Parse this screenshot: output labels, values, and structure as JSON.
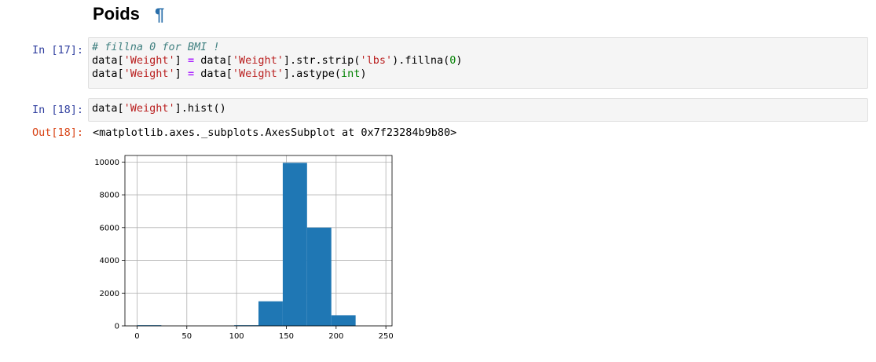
{
  "heading": {
    "title": "Poids",
    "anchor": "¶"
  },
  "cells": [
    {
      "prompt": "In [17]:",
      "lines": [
        [
          {
            "t": "# fillna 0 for BMI !",
            "c": "cm"
          }
        ],
        [
          {
            "t": "data[",
            "c": ""
          },
          {
            "t": "'Weight'",
            "c": "s"
          },
          {
            "t": "] ",
            "c": ""
          },
          {
            "t": "=",
            "c": "op"
          },
          {
            "t": " data[",
            "c": ""
          },
          {
            "t": "'Weight'",
            "c": "s"
          },
          {
            "t": "].str.strip(",
            "c": ""
          },
          {
            "t": "'lbs'",
            "c": "s"
          },
          {
            "t": ").fillna(",
            "c": ""
          },
          {
            "t": "0",
            "c": "n"
          },
          {
            "t": ")",
            "c": ""
          }
        ],
        [
          {
            "t": "data[",
            "c": ""
          },
          {
            "t": "'Weight'",
            "c": "s"
          },
          {
            "t": "] ",
            "c": ""
          },
          {
            "t": "=",
            "c": "op"
          },
          {
            "t": " data[",
            "c": ""
          },
          {
            "t": "'Weight'",
            "c": "s"
          },
          {
            "t": "].astype(",
            "c": ""
          },
          {
            "t": "int",
            "c": "bi"
          },
          {
            "t": ")",
            "c": ""
          }
        ]
      ]
    },
    {
      "prompt": "In [18]:",
      "lines": [
        [
          {
            "t": "data[",
            "c": ""
          },
          {
            "t": "'Weight'",
            "c": "s"
          },
          {
            "t": "].hist()",
            "c": ""
          }
        ]
      ]
    }
  ],
  "output": {
    "prompt": "Out[18]:",
    "text": "<matplotlib.axes._subplots.AxesSubplot at 0x7f23284b9b80>"
  },
  "chart_data": {
    "type": "bar",
    "bins": [
      {
        "start": 0,
        "end": 24.4,
        "count": 40
      },
      {
        "start": 24.4,
        "end": 48.8,
        "count": 0
      },
      {
        "start": 48.8,
        "end": 73.2,
        "count": 0
      },
      {
        "start": 73.2,
        "end": 97.6,
        "count": 0
      },
      {
        "start": 97.6,
        "end": 122,
        "count": 40
      },
      {
        "start": 122,
        "end": 146.4,
        "count": 1500
      },
      {
        "start": 146.4,
        "end": 170.8,
        "count": 9950
      },
      {
        "start": 170.8,
        "end": 195.2,
        "count": 6000
      },
      {
        "start": 195.2,
        "end": 219.6,
        "count": 650
      },
      {
        "start": 219.6,
        "end": 244,
        "count": 0
      }
    ],
    "xticks": [
      0,
      50,
      100,
      150,
      200,
      250
    ],
    "yticks": [
      0,
      2000,
      4000,
      6000,
      8000,
      10000
    ],
    "xlim": [
      -12.2,
      256.2
    ],
    "ylim": [
      0,
      10400
    ],
    "grid": true,
    "bar_color": "#1f77b4"
  }
}
